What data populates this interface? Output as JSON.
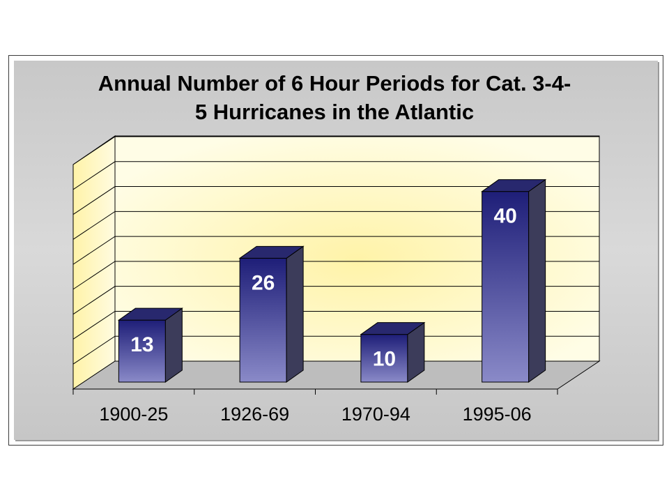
{
  "chart_data": {
    "type": "bar",
    "title_lines": [
      "Annual Number of 6 Hour Periods for Cat. 3-4-",
      "5 Hurricanes in the Atlantic"
    ],
    "categories": [
      "1900-25",
      "1926-69",
      "1970-94",
      "1995-06"
    ],
    "values": [
      13,
      26,
      10,
      40
    ],
    "data_labels": [
      "13",
      "26",
      "10",
      "40"
    ],
    "ylim": [
      0,
      45
    ],
    "ygrid_step": 5,
    "grid": true,
    "three_d": true,
    "legend": "none",
    "colors": {
      "bar_top": "#1e1e78",
      "bar_bottom": "#8a8ac8",
      "bar_side": "#3c3c5a",
      "bar_cap": "#28286e",
      "wall": "#fffbd6",
      "wall_glow": "#fff3a8",
      "floor": "#bdbdbd",
      "gridline": "#000000"
    }
  }
}
